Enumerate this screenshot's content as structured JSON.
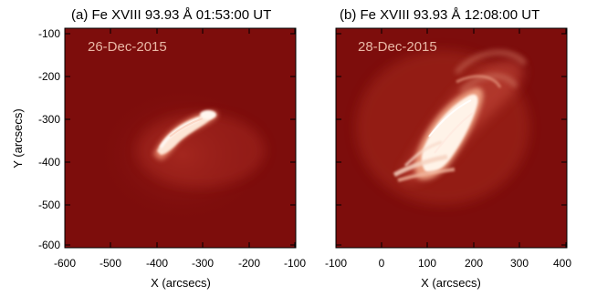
{
  "panels": [
    {
      "id": "a",
      "title": "(a) Fe XVIII 93.93 Å 01:53:00 UT",
      "date_label": "26-Dec-2015",
      "x_axis": {
        "label": "X (arcsecs)",
        "range": [
          -600,
          -100
        ],
        "ticks": [
          "-600",
          "-500",
          "-400",
          "-300",
          "-200",
          "-100"
        ]
      },
      "y_axis": {
        "label": "Y (arcsecs)",
        "range": [
          -600,
          -100
        ],
        "ticks": [
          "-100",
          "-200",
          "-300",
          "-400",
          "-500",
          "-600"
        ]
      }
    },
    {
      "id": "b",
      "title": "(b) Fe XVIII 93.93 Å 12:08:00 UT",
      "date_label": "28-Dec-2015",
      "x_axis": {
        "label": "X (arcsecs)",
        "range": [
          -100,
          400
        ],
        "ticks": [
          "-100",
          "0",
          "100",
          "200",
          "300",
          "400"
        ]
      },
      "y_axis": {
        "label": "",
        "range": [
          -600,
          -100
        ],
        "ticks": []
      }
    }
  ],
  "colors": {
    "background": "#7d0d0c",
    "bright": "#fff4e6",
    "axes": "#000000",
    "date_text": "#e9b8a6"
  }
}
